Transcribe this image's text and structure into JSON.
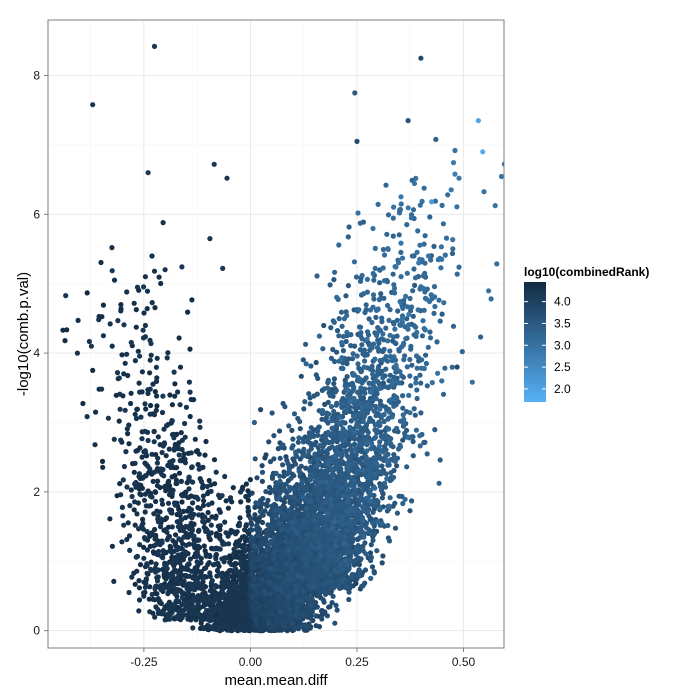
{
  "chart_data": {
    "type": "scatter",
    "title": "",
    "xlabel": "mean.mean.diff",
    "ylabel": "-log10(comb.p.val)",
    "xlim": [
      -0.475,
      0.595
    ],
    "ylim": [
      -0.25,
      8.8
    ],
    "x_ticks": [
      {
        "value": -0.25,
        "label": "-0.25"
      },
      {
        "value": 0.0,
        "label": "0.00"
      },
      {
        "value": 0.25,
        "label": "0.25"
      },
      {
        "value": 0.5,
        "label": "0.50"
      }
    ],
    "y_ticks": [
      {
        "value": 0,
        "label": "0"
      },
      {
        "value": 2,
        "label": "2"
      },
      {
        "value": 4,
        "label": "4"
      },
      {
        "value": 6,
        "label": "6"
      },
      {
        "value": 8,
        "label": "8"
      }
    ],
    "grid": true,
    "color_scale": {
      "title": "log10(combinedRank)",
      "low_color": "#56b1f7",
      "high_color": "#132b43",
      "range": [
        1.7,
        4.45
      ],
      "breaks": [
        {
          "value": 4.0,
          "label": "4.0"
        },
        {
          "value": 3.5,
          "label": "3.5"
        },
        {
          "value": 3.0,
          "label": "3.0"
        },
        {
          "value": 2.5,
          "label": "2.5"
        },
        {
          "value": 2.0,
          "label": "2.0"
        }
      ],
      "legend_position": "right"
    },
    "notable_points": [
      {
        "x": -0.225,
        "y": 8.42,
        "c": 4.2
      },
      {
        "x": 0.4,
        "y": 8.25,
        "c": 3.9
      },
      {
        "x": -0.37,
        "y": 7.58,
        "c": 4.2
      },
      {
        "x": 0.245,
        "y": 7.75,
        "c": 3.5
      },
      {
        "x": 0.535,
        "y": 7.35,
        "c": 1.9
      },
      {
        "x": 0.37,
        "y": 7.35,
        "c": 3.6
      },
      {
        "x": 0.545,
        "y": 6.9,
        "c": 1.8
      },
      {
        "x": 0.435,
        "y": 7.08,
        "c": 3.3
      },
      {
        "x": 0.48,
        "y": 6.92,
        "c": 3.0
      },
      {
        "x": 0.25,
        "y": 7.05,
        "c": 3.8
      },
      {
        "x": 0.48,
        "y": 6.58,
        "c": 2.7
      },
      {
        "x": 0.425,
        "y": 6.18,
        "c": 2.2
      },
      {
        "x": -0.24,
        "y": 6.6,
        "c": 4.2
      },
      {
        "x": -0.085,
        "y": 6.72,
        "c": 4.2
      },
      {
        "x": -0.055,
        "y": 6.52,
        "c": 4.2
      },
      {
        "x": -0.205,
        "y": 5.88,
        "c": 4.3
      },
      {
        "x": -0.325,
        "y": 5.52,
        "c": 4.3
      },
      {
        "x": -0.095,
        "y": 5.65,
        "c": 4.2
      },
      {
        "x": -0.225,
        "y": 5.18,
        "c": 4.3
      },
      {
        "x": -0.065,
        "y": 5.22,
        "c": 4.2
      },
      {
        "x": -0.265,
        "y": 4.95,
        "c": 4.3
      },
      {
        "x": -0.44,
        "y": 4.33,
        "c": 4.4
      },
      {
        "x": -0.345,
        "y": 4.25,
        "c": 4.3
      },
      {
        "x": -0.435,
        "y": 4.18,
        "c": 4.4
      },
      {
        "x": -0.37,
        "y": 3.75,
        "c": 4.4
      },
      {
        "x": -0.355,
        "y": 3.48,
        "c": 4.4
      },
      {
        "x": -0.28,
        "y": 3.42,
        "c": 4.3
      },
      {
        "x": -0.285,
        "y": 0.55,
        "c": 4.3
      },
      {
        "x": 0.485,
        "y": 3.8,
        "c": 3.8
      }
    ],
    "clouds": [
      {
        "n": 5200,
        "x0": 0.015,
        "y0": 0.0,
        "dx_per_y": 0.072,
        "sd_x": 0.085,
        "y_rate": 0.9,
        "y_max": 6.8
      },
      {
        "n": 1700,
        "x0": 0.14,
        "y0": 0.6,
        "dx_per_y": 0.038,
        "sd_x": 0.055,
        "y_rate": 0.72,
        "y_max": 6.2
      },
      {
        "n": 1000,
        "x0": -0.13,
        "y0": 0.15,
        "dx_per_y": -0.03,
        "sd_x": 0.075,
        "y_rate": 0.65,
        "y_max": 5.6
      }
    ]
  }
}
